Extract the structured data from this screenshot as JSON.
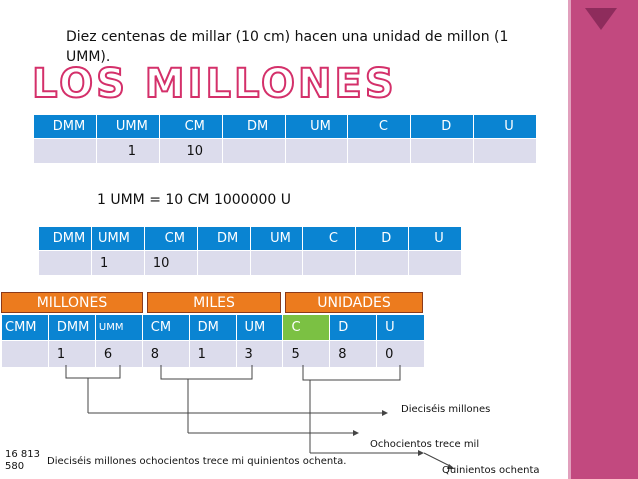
{
  "intro_text": "Diez centenas de millar (10 cm) hacen una unidad de millon (1 UMM).",
  "title": "LOS MILLONES",
  "table1": {
    "headers": [
      "DMM",
      "UMM",
      "CM",
      "DM",
      "UM",
      "C",
      "D",
      "U"
    ],
    "values": [
      "",
      "1",
      "10",
      "",
      "",
      "",
      "",
      ""
    ]
  },
  "equation": "1 UMM = 10 CM 1000000 U",
  "table2": {
    "headers": [
      "DMM",
      "UMM",
      "CM",
      "DM",
      "UM",
      "C",
      "D",
      "U"
    ],
    "values": [
      "",
      "1",
      "10",
      "",
      "",
      "",
      "",
      ""
    ]
  },
  "groups": [
    "MILLONES",
    "MILES",
    "UNIDADES"
  ],
  "table3": {
    "headers": [
      "CMM",
      "DMM",
      "UMM",
      "CM",
      "DM",
      "UM",
      "C",
      "D",
      "U"
    ],
    "values": [
      "",
      "1",
      "6",
      "8",
      "1",
      "3",
      "5",
      "8",
      "0"
    ]
  },
  "annotations": {
    "dieciseis": "Dieciséis  millones",
    "ochocientos": "Ochocientos trece mil",
    "quinientos": "Quinientos ochenta",
    "number_line1": "16 813",
    "number_line2": "580",
    "full_text": "Dieciséis millones ochocientos trece mi quinientos ochenta."
  },
  "colors": {
    "header_blue": "#0a84d2",
    "row_gray": "#dcdcec",
    "group_orange": "#ec7b1e",
    "header_green": "#7bc143",
    "sidebar_pink": "#c2497f",
    "title_pink": "#d4306a"
  }
}
